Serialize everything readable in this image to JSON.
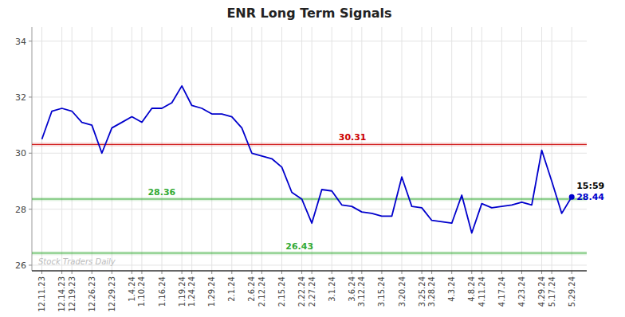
{
  "chart_data": {
    "type": "line",
    "title": "ENR Long Term Signals",
    "categories": [
      "12.11.23",
      null,
      "12.14.23",
      "12.19.23",
      null,
      "12.26.23",
      null,
      "12.29.23",
      null,
      "1.4.24",
      "1.10.24",
      null,
      "1.16.24",
      null,
      "1.19.24",
      "1.24.24",
      null,
      "1.29.24",
      null,
      "2.1.24",
      null,
      "2.6.24",
      "2.12.24",
      null,
      "2.15.24",
      null,
      "2.22.24",
      "2.27.24",
      null,
      "3.1.24",
      null,
      "3.6.24",
      "3.12.24",
      null,
      "3.15.24",
      null,
      "3.20.24",
      null,
      "3.25.24",
      "3.28.24",
      null,
      "4.3.24",
      null,
      "4.8.24",
      "4.11.24",
      null,
      "4.17.24",
      null,
      "4.23.24",
      null,
      "4.29.24",
      "5.17.24",
      null,
      "5.29.24"
    ],
    "values": [
      30.5,
      31.5,
      31.6,
      31.5,
      31.1,
      31.0,
      30.0,
      30.9,
      31.1,
      31.3,
      31.1,
      31.6,
      31.6,
      31.8,
      32.4,
      31.7,
      31.6,
      31.4,
      31.4,
      31.3,
      30.9,
      30.0,
      29.9,
      29.8,
      29.5,
      28.6,
      28.36,
      27.5,
      28.7,
      28.65,
      28.15,
      28.1,
      27.9,
      27.85,
      27.75,
      27.75,
      29.15,
      28.1,
      28.05,
      27.6,
      27.55,
      27.5,
      28.5,
      27.15,
      28.2,
      28.05,
      28.1,
      28.15,
      28.25,
      28.15,
      30.1,
      29.0,
      27.85,
      28.44
    ],
    "color": "#0000cc",
    "ylim": [
      25.8,
      34.5
    ],
    "yticks": [
      26,
      28,
      30,
      32,
      34
    ],
    "grid": true,
    "reference_lines": [
      {
        "value": 30.31,
        "color": "#cc0000"
      },
      {
        "value": 28.36,
        "color": "#33aa33"
      },
      {
        "value": 26.43,
        "color": "#33aa33"
      }
    ],
    "last_point": {
      "time": "15:59",
      "value": 28.44
    },
    "watermark": "Stock Traders Daily"
  }
}
